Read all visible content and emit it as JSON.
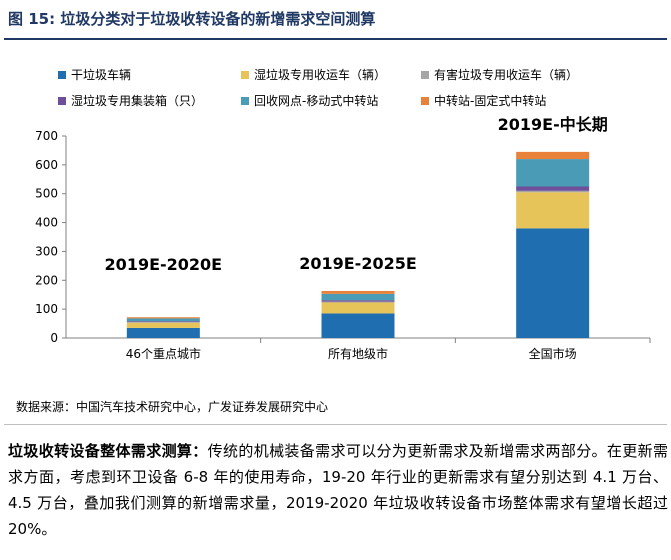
{
  "figure": {
    "title": "图 15: 垃圾分类对于垃圾收转设备的新增需求空间测算"
  },
  "colors": {
    "title": "#1f3864",
    "series": [
      "#1f6fb0",
      "#e6c45a",
      "#a6a6a6",
      "#6f4f9a",
      "#4a9bb5",
      "#e8823a"
    ]
  },
  "chart_data": {
    "type": "bar",
    "stacked": true,
    "categories": [
      "46个重点城市",
      "所有地级市",
      "全国市场"
    ],
    "series": [
      {
        "name": "干垃圾车辆",
        "values": [
          35,
          85,
          380
        ]
      },
      {
        "name": "湿垃圾专用收运车（辆）",
        "values": [
          18,
          38,
          125
        ]
      },
      {
        "name": "有害垃圾专用收运车（辆）",
        "values": [
          2,
          3,
          5
        ]
      },
      {
        "name": "湿垃圾专用集装箱（只）",
        "values": [
          3,
          5,
          15
        ]
      },
      {
        "name": "回收网点-移动式中转站",
        "values": [
          10,
          22,
          95
        ]
      },
      {
        "name": "中转站-固定式中转站",
        "values": [
          4,
          10,
          25
        ]
      }
    ],
    "ylim": [
      0,
      700
    ],
    "yticks": [
      0,
      100,
      200,
      300,
      400,
      500,
      600,
      700
    ],
    "annotations": [
      "2019E-2020E",
      "2019E-2025E",
      "2019E-中长期"
    ],
    "legend_position": "top",
    "grid": false
  },
  "source": "数据来源：中国汽车技术研究中心，广发证券发展研究中心",
  "body": {
    "lead": "垃圾收转设备整体需求测算：",
    "text": "传统的机械装备需求可以分为更新需求及新增需求两部分。在更新需求方面，考虑到环卫设备 6-8 年的使用寿命，19-20 年行业的更新需求有望分别达到 4.1 万台、4.5 万台，叠加我们测算的新增需求量，2019-2020 年垃圾收转设备市场整体需求有望增长超过 20%。"
  }
}
